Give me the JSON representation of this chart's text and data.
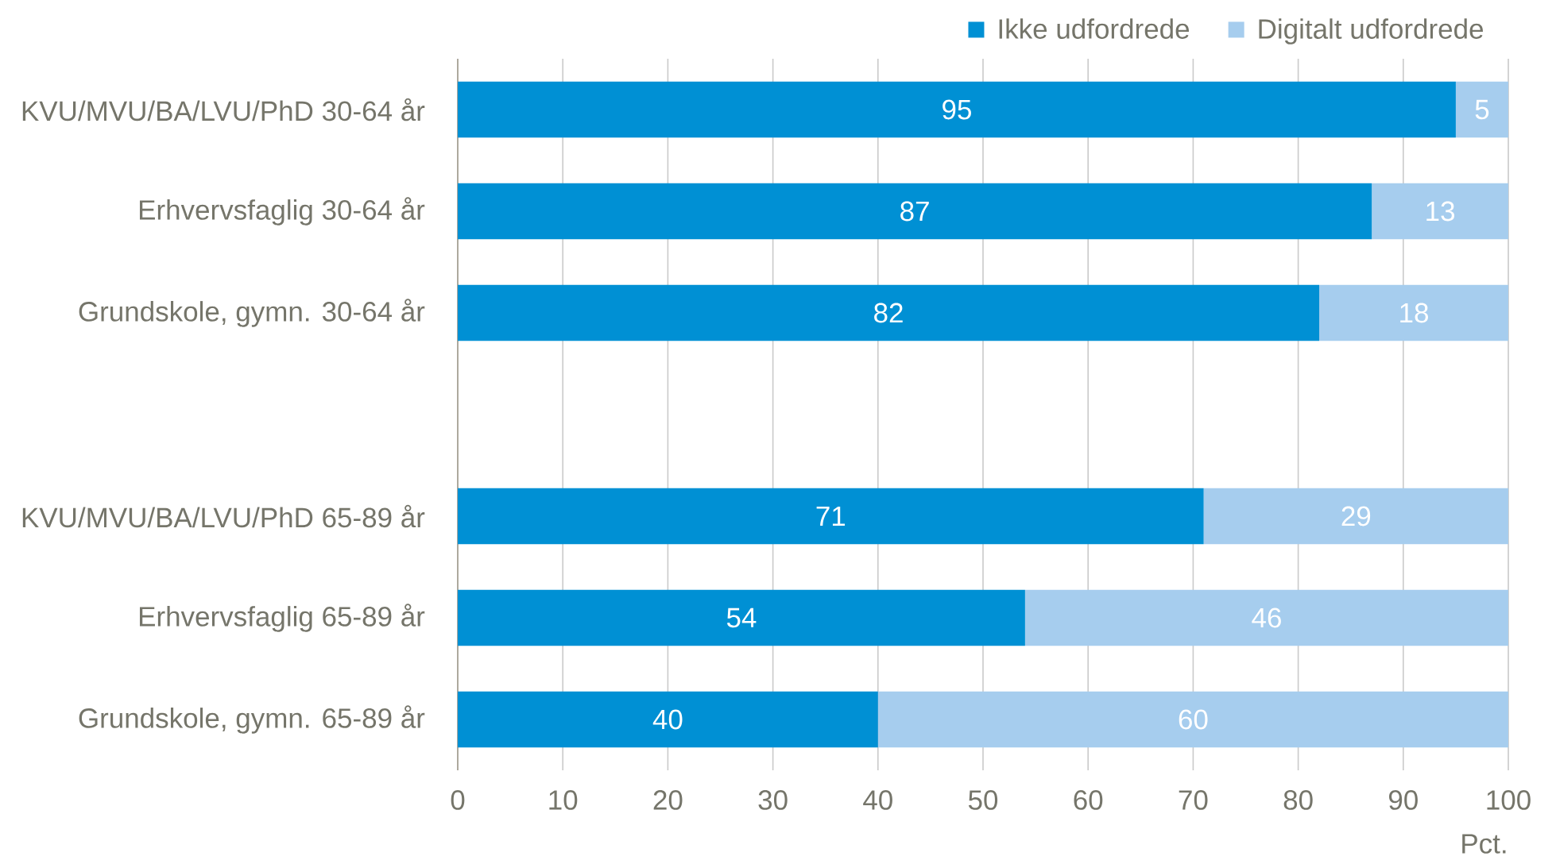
{
  "chart_data": {
    "type": "bar",
    "orientation": "horizontal",
    "stacked": true,
    "categories": [
      "KVU/MVU/BA/LVU/PhD 30-64 år",
      "Erhvervsfaglig 30-64 år",
      "Grundskole, gymn. 30-64 år",
      null,
      "KVU/MVU/BA/LVU/PhD 65-89 år",
      "Erhvervsfaglig 65-89 år",
      "Grundskole, gymn. 65-89 år"
    ],
    "series": [
      {
        "name": "Ikke udfordrede",
        "color": "#0090d4",
        "values": [
          95,
          87,
          82,
          null,
          71,
          54,
          40
        ]
      },
      {
        "name": "Digitalt udfordrede",
        "color": "#a6cdee",
        "values": [
          5,
          13,
          18,
          null,
          29,
          46,
          60
        ]
      }
    ],
    "xlabel": "Pct.",
    "xlim": [
      0,
      100
    ],
    "xticks": [
      0,
      10,
      20,
      30,
      40,
      50,
      60,
      70,
      80,
      90,
      100
    ],
    "grid": "x",
    "legend": "top right",
    "data_labels": true
  }
}
